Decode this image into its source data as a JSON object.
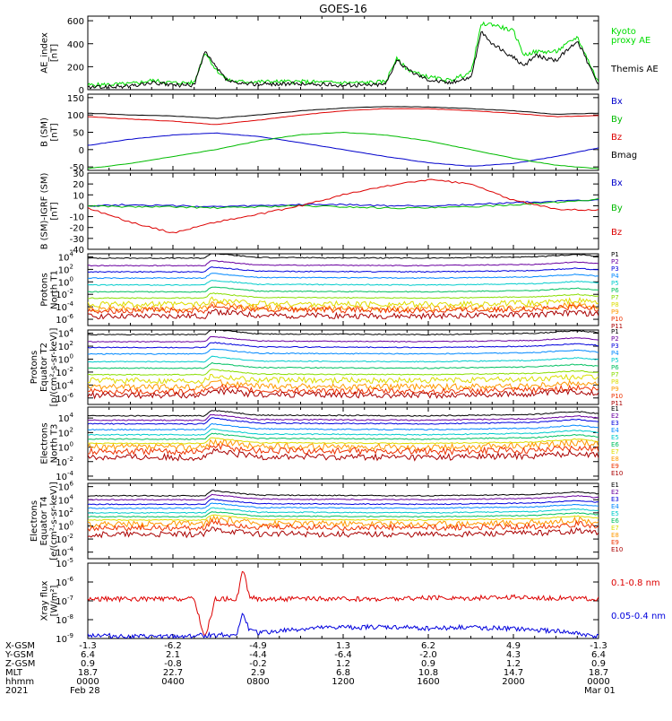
{
  "title": "GOES-16",
  "panels": [
    {
      "id": "ae",
      "ylabel": [
        "AE_index",
        "[nT]"
      ],
      "scale": "linear",
      "yticks": [
        {
          "v": 0,
          "t": "0"
        },
        {
          "v": 200,
          "t": "200"
        },
        {
          "v": 400,
          "t": "400"
        },
        {
          "v": 600,
          "t": "600"
        }
      ],
      "ylim": [
        0,
        640
      ],
      "legend": [
        {
          "text": "Kyoto",
          "color": "#00dd00"
        },
        {
          "text": "proxy AE",
          "color": "#00dd00"
        },
        {
          "text": "Themis AE",
          "color": "#000000"
        }
      ]
    },
    {
      "id": "bsm",
      "ylabel": [
        "B (SM)",
        "[nT]"
      ],
      "scale": "linear",
      "yticks": [
        {
          "v": -50,
          "t": "-50"
        },
        {
          "v": 0,
          "t": "0"
        },
        {
          "v": 50,
          "t": "50"
        },
        {
          "v": 100,
          "t": "100"
        },
        {
          "v": 150,
          "t": "150"
        }
      ],
      "ylim": [
        -60,
        160
      ],
      "legend": [
        {
          "text": "Bx",
          "color": "#0000cc"
        },
        {
          "text": "By",
          "color": "#00bb00"
        },
        {
          "text": "Bz",
          "color": "#dd0000"
        },
        {
          "text": "Bmag",
          "color": "#000000"
        }
      ]
    },
    {
      "id": "bigrf",
      "ylabel": [
        "B (SM)-IGRF (SM)",
        "[nT]"
      ],
      "scale": "linear",
      "yticks": [
        {
          "v": -40,
          "t": "-40"
        },
        {
          "v": -30,
          "t": "-30"
        },
        {
          "v": -20,
          "t": "-20"
        },
        {
          "v": -10,
          "t": "-10"
        },
        {
          "v": 0,
          "t": "0"
        },
        {
          "v": 10,
          "t": "10"
        },
        {
          "v": 20,
          "t": "20"
        },
        {
          "v": 30,
          "t": "30"
        }
      ],
      "ylim": [
        -40,
        30
      ],
      "legend": [
        {
          "text": "Bx",
          "color": "#0000cc"
        },
        {
          "text": "By",
          "color": "#00bb00"
        },
        {
          "text": "Bz",
          "color": "#dd0000"
        }
      ]
    },
    {
      "id": "pt1",
      "ylabel": [
        "Protons",
        "North T1"
      ],
      "scale": "log",
      "yticks": [
        {
          "v": -6,
          "t": "10",
          "e": "-6"
        },
        {
          "v": -4,
          "t": "10",
          "e": "-4"
        },
        {
          "v": -2,
          "t": "10",
          "e": "-2"
        },
        {
          "v": 0,
          "t": "10",
          "e": "0"
        },
        {
          "v": 2,
          "t": "10",
          "e": "2"
        },
        {
          "v": 4,
          "t": "10",
          "e": "4"
        }
      ],
      "ylim": [
        -7,
        4.5
      ],
      "legend": [
        {
          "text": "P1",
          "color": "#000000"
        },
        {
          "text": "P2",
          "color": "#6a00a0"
        },
        {
          "text": "P3",
          "color": "#0000dd"
        },
        {
          "text": "P4",
          "color": "#0088ff"
        },
        {
          "text": "P5",
          "color": "#00cccc"
        },
        {
          "text": "P6",
          "color": "#00c060"
        },
        {
          "text": "P7",
          "color": "#88dd00"
        },
        {
          "text": "P8",
          "color": "#dddd00"
        },
        {
          "text": "P9",
          "color": "#ff9900"
        },
        {
          "text": "P10",
          "color": "#ee3300"
        },
        {
          "text": "P11",
          "color": "#aa0000"
        }
      ]
    },
    {
      "id": "pt2",
      "ylabel": [
        "Protons",
        "Equator T2",
        "[p/(cm²-s-sr-keV)]"
      ],
      "scale": "log",
      "yticks": [
        {
          "v": -6,
          "t": "10",
          "e": "-6"
        },
        {
          "v": -4,
          "t": "10",
          "e": "-4"
        },
        {
          "v": -2,
          "t": "10",
          "e": "-2"
        },
        {
          "v": 0,
          "t": "10",
          "e": "0"
        },
        {
          "v": 2,
          "t": "10",
          "e": "2"
        },
        {
          "v": 4,
          "t": "10",
          "e": "4"
        }
      ],
      "ylim": [
        -7,
        4.5
      ],
      "legend": [
        {
          "text": "P1",
          "color": "#000000"
        },
        {
          "text": "P2",
          "color": "#6a00a0"
        },
        {
          "text": "P3",
          "color": "#0000dd"
        },
        {
          "text": "P4",
          "color": "#0088ff"
        },
        {
          "text": "P5",
          "color": "#00cccc"
        },
        {
          "text": "P6",
          "color": "#00c060"
        },
        {
          "text": "P7",
          "color": "#88dd00"
        },
        {
          "text": "P8",
          "color": "#dddd00"
        },
        {
          "text": "P9",
          "color": "#ff9900"
        },
        {
          "text": "P10",
          "color": "#ee3300"
        },
        {
          "text": "P11",
          "color": "#aa0000"
        }
      ]
    },
    {
      "id": "et3",
      "ylabel": [
        "Electrons",
        "North T3"
      ],
      "scale": "log",
      "yticks": [
        {
          "v": -4,
          "t": "10",
          "e": "-4"
        },
        {
          "v": -2,
          "t": "10",
          "e": "-2"
        },
        {
          "v": 0,
          "t": "10",
          "e": "0"
        },
        {
          "v": 2,
          "t": "10",
          "e": "2"
        },
        {
          "v": 4,
          "t": "10",
          "e": "4"
        }
      ],
      "ylim": [
        -4.5,
        5.5
      ],
      "legend": [
        {
          "text": "E1",
          "color": "#000000"
        },
        {
          "text": "E2",
          "color": "#6a00a0"
        },
        {
          "text": "E3",
          "color": "#0000dd"
        },
        {
          "text": "E4",
          "color": "#0088ff"
        },
        {
          "text": "E5",
          "color": "#00cccc"
        },
        {
          "text": "E6",
          "color": "#00c060"
        },
        {
          "text": "E7",
          "color": "#dddd00"
        },
        {
          "text": "E8",
          "color": "#ff9900"
        },
        {
          "text": "E9",
          "color": "#ee3300"
        },
        {
          "text": "E10",
          "color": "#aa0000"
        }
      ]
    },
    {
      "id": "et4",
      "ylabel": [
        "Electrons",
        "Equator T4",
        "[e/(cm²-s-sr-keV)]"
      ],
      "scale": "log",
      "yticks": [
        {
          "v": -4,
          "t": "10",
          "e": "-4"
        },
        {
          "v": -2,
          "t": "10",
          "e": "-2"
        },
        {
          "v": 0,
          "t": "10",
          "e": "0"
        },
        {
          "v": 2,
          "t": "10",
          "e": "2"
        },
        {
          "v": 4,
          "t": "10",
          "e": "4"
        },
        {
          "v": 6,
          "t": "10",
          "e": "6"
        }
      ],
      "ylim": [
        -5,
        6.5
      ],
      "legend": [
        {
          "text": "E1",
          "color": "#000000"
        },
        {
          "text": "E2",
          "color": "#6a00a0"
        },
        {
          "text": "E3",
          "color": "#0000dd"
        },
        {
          "text": "E4",
          "color": "#0088ff"
        },
        {
          "text": "E5",
          "color": "#00cccc"
        },
        {
          "text": "E6",
          "color": "#00c060"
        },
        {
          "text": "E7",
          "color": "#dddd00"
        },
        {
          "text": "E8",
          "color": "#ff9900"
        },
        {
          "text": "E9",
          "color": "#ee3300"
        },
        {
          "text": "E10",
          "color": "#aa0000"
        }
      ]
    },
    {
      "id": "xray",
      "ylabel": [
        "Xray flux",
        "[W/m²]"
      ],
      "scale": "log",
      "yticks": [
        {
          "v": -9,
          "t": "10",
          "e": "-9"
        },
        {
          "v": -8,
          "t": "10",
          "e": "-8"
        },
        {
          "v": -7,
          "t": "10",
          "e": "-7"
        },
        {
          "v": -6,
          "t": "10",
          "e": "-6"
        },
        {
          "v": -5,
          "t": "10",
          "e": "-5"
        }
      ],
      "ylim": [
        -9,
        -5
      ],
      "legend": [
        {
          "text": "0.1-0.8 nm",
          "color": "#dd0000"
        },
        {
          "text": "0.05-0.4 nm",
          "color": "#0000dd"
        }
      ]
    }
  ],
  "orbit_rows": [
    {
      "label": "X-GSM",
      "values": [
        "-1.3",
        "-6.2",
        "-4.9",
        "1.3",
        "6.2",
        "4.9",
        "-1.3"
      ]
    },
    {
      "label": "Y-GSM",
      "values": [
        "6.4",
        "2.1",
        "-4.4",
        "-6.4",
        "-2.0",
        "4.3",
        "6.4"
      ]
    },
    {
      "label": "Z-GSM",
      "values": [
        "0.9",
        "-0.8",
        "-0.2",
        "1.2",
        "0.9",
        "1.2",
        "0.9"
      ]
    },
    {
      "label": "MLT",
      "values": [
        "18.7",
        "22.7",
        "2.9",
        "6.8",
        "10.8",
        "14.7",
        "18.7"
      ]
    },
    {
      "label": "hhmm",
      "values": [
        "0000",
        "0400",
        "0800",
        "1200",
        "1600",
        "2000",
        "0000"
      ]
    }
  ],
  "date_row": {
    "year": "2021",
    "start": "Feb 28",
    "end": "Mar 01"
  },
  "chart_data": {
    "type": "line",
    "title": "GOES-16",
    "x_unit": "hour of day, 2021 Feb 28",
    "x_ticks": [
      "0000",
      "0400",
      "0800",
      "1200",
      "1600",
      "2000",
      "0000"
    ],
    "xlim": [
      0,
      24
    ],
    "series": [
      {
        "panel": "ae",
        "name": "Kyoto proxy AE",
        "x": [
          0,
          1,
          2,
          3,
          4,
          5,
          5.5,
          6,
          6.5,
          7,
          8,
          9,
          10,
          11,
          12,
          13,
          14,
          14.5,
          15,
          15.5,
          16,
          17,
          18,
          18.5,
          19,
          20,
          20.5,
          21,
          22,
          23,
          24
        ],
        "y": [
          40,
          45,
          50,
          80,
          60,
          60,
          330,
          180,
          90,
          70,
          70,
          70,
          70,
          65,
          60,
          60,
          70,
          270,
          180,
          140,
          110,
          80,
          150,
          570,
          570,
          510,
          300,
          330,
          330,
          460,
          60
        ]
      },
      {
        "panel": "ae",
        "name": "Themis AE",
        "x": [
          0,
          1,
          2,
          3,
          4,
          5,
          5.5,
          6,
          6.5,
          7,
          8,
          9,
          10,
          11,
          12,
          13,
          14,
          14.5,
          15,
          15.5,
          16,
          17,
          18,
          18.5,
          19,
          20,
          20.5,
          21,
          22,
          23,
          24
        ],
        "y": [
          20,
          25,
          30,
          60,
          40,
          40,
          330,
          200,
          90,
          50,
          50,
          50,
          50,
          45,
          40,
          40,
          50,
          260,
          180,
          130,
          90,
          60,
          110,
          500,
          400,
          280,
          200,
          300,
          250,
          430,
          40
        ]
      },
      {
        "panel": "bsm",
        "name": "Bx",
        "x": [
          0,
          2,
          4,
          6,
          8,
          10,
          12,
          14,
          16,
          18,
          20,
          22,
          24
        ],
        "y": [
          12,
          30,
          42,
          48,
          38,
          20,
          0,
          -20,
          -38,
          -48,
          -40,
          -20,
          5
        ]
      },
      {
        "panel": "bsm",
        "name": "By",
        "x": [
          0,
          2,
          4,
          6,
          8,
          10,
          12,
          14,
          16,
          18,
          20,
          22,
          24
        ],
        "y": [
          -55,
          -40,
          -20,
          0,
          25,
          43,
          50,
          42,
          25,
          0,
          -25,
          -45,
          -55
        ]
      },
      {
        "panel": "bsm",
        "name": "Bz",
        "x": [
          0,
          2,
          4,
          6,
          8,
          10,
          12,
          14,
          16,
          18,
          20,
          22,
          24
        ],
        "y": [
          95,
          88,
          82,
          72,
          85,
          100,
          112,
          118,
          118,
          112,
          105,
          95,
          98
        ]
      },
      {
        "panel": "bsm",
        "name": "Bmag",
        "x": [
          0,
          2,
          4,
          6,
          8,
          10,
          12,
          14,
          16,
          18,
          20,
          22,
          24
        ],
        "y": [
          105,
          100,
          97,
          90,
          100,
          112,
          120,
          124,
          123,
          118,
          112,
          102,
          105
        ]
      },
      {
        "panel": "bigrf",
        "name": "Bx",
        "x": [
          0,
          2,
          4,
          6,
          8,
          10,
          12,
          14,
          16,
          18,
          20,
          22,
          24
        ],
        "y": [
          0,
          1,
          0,
          -1,
          0,
          1,
          1,
          0,
          0,
          1,
          3,
          4,
          5
        ]
      },
      {
        "panel": "bigrf",
        "name": "By",
        "x": [
          0,
          2,
          4,
          6,
          8,
          10,
          12,
          14,
          16,
          18,
          20,
          22,
          24
        ],
        "y": [
          0,
          -1,
          -1,
          -2,
          -1,
          0,
          -1,
          -2,
          -2,
          -1,
          1,
          3,
          6
        ]
      },
      {
        "panel": "bigrf",
        "name": "Bz",
        "x": [
          0,
          2,
          4,
          6,
          8,
          10,
          12,
          14,
          16,
          18,
          20,
          22,
          24
        ],
        "y": [
          -2,
          -15,
          -25,
          -15,
          -8,
          0,
          10,
          18,
          24,
          20,
          5,
          -3,
          -4
        ]
      },
      {
        "panel": "xray",
        "name": "0.1-0.8 nm",
        "x": [
          0,
          2,
          4,
          5,
          5.5,
          6,
          6.5,
          7,
          7.3,
          7.6,
          8,
          10,
          12,
          14,
          16,
          18,
          20,
          22,
          24
        ],
        "y": [
          -6.9,
          -6.9,
          -6.9,
          -6.9,
          -9.0,
          -6.9,
          -6.9,
          -6.9,
          -5.3,
          -6.8,
          -6.9,
          -6.9,
          -6.9,
          -6.9,
          -6.85,
          -6.85,
          -6.8,
          -6.85,
          -6.9
        ]
      },
      {
        "panel": "xray",
        "name": "0.05-0.4 nm",
        "x": [
          0,
          2,
          4,
          6,
          7,
          7.3,
          7.6,
          8,
          10,
          12,
          14,
          16,
          18,
          20,
          22,
          24
        ],
        "y": [
          -8.8,
          -8.9,
          -8.9,
          -8.8,
          -8.8,
          -7.6,
          -8.6,
          -8.7,
          -8.5,
          -8.4,
          -8.4,
          -8.45,
          -8.4,
          -8.5,
          -8.6,
          -8.9
        ]
      }
    ],
    "flux_levels_log10": {
      "pt1": [
        3.8,
        2.6,
        1.6,
        0.6,
        -0.5,
        -1.6,
        -2.6,
        -3.6,
        -4.3,
        -4.6,
        -5.5
      ],
      "pt2": [
        3.8,
        2.7,
        1.8,
        0.8,
        -0.4,
        -1.4,
        -2.4,
        -3.3,
        -4.3,
        -5.0,
        -5.6
      ],
      "et3": [
        4.3,
        3.7,
        3.2,
        2.4,
        1.7,
        1.1,
        0.5,
        0.0,
        -0.6,
        -1.4
      ],
      "et4": [
        4.6,
        4.0,
        3.3,
        2.7,
        2.0,
        1.4,
        0.9,
        0.3,
        -0.3,
        -1.3
      ]
    }
  }
}
